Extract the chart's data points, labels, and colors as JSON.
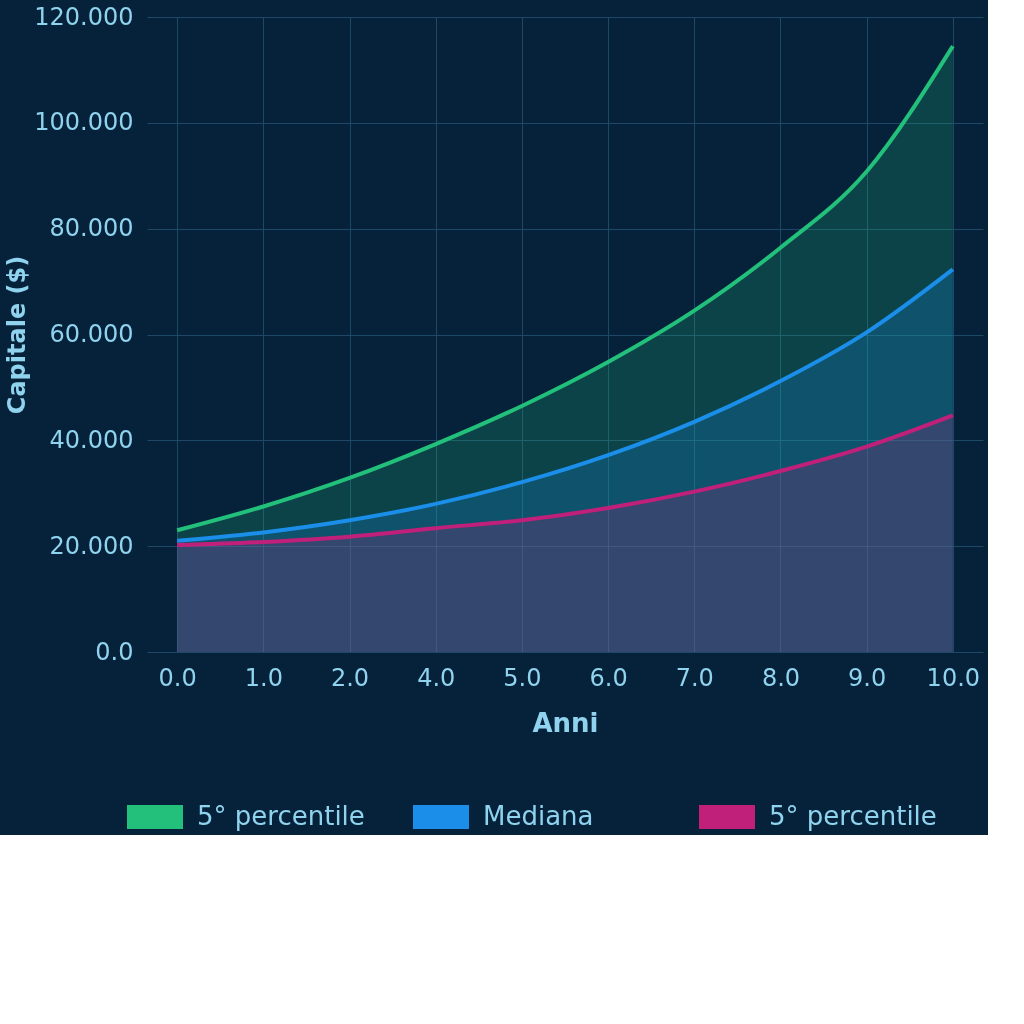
{
  "chart_data": {
    "type": "area",
    "xlabel": "Anni",
    "ylabel": "Capitale ($)",
    "categories": [
      "0.0",
      "1.0",
      "2.0",
      "4.0",
      "5.0",
      "6.0",
      "7.0",
      "8.0",
      "9.0",
      "10.0"
    ],
    "series": [
      {
        "name": "5° percentile",
        "color": "#22c07a",
        "values": [
          23.0,
          27.5,
          32.9,
          39.3,
          46.5,
          54.8,
          64.5,
          76.4,
          90.8,
          114.5
        ]
      },
      {
        "name": "Mediana",
        "color": "#1a8ee8",
        "values": [
          21.0,
          22.6,
          24.9,
          28.0,
          32.1,
          37.2,
          43.5,
          51.2,
          60.4,
          72.3
        ]
      },
      {
        "name": "5° percentile",
        "color": "#c0207a",
        "values": [
          20.2,
          20.8,
          21.8,
          23.4,
          24.9,
          27.2,
          30.3,
          34.2,
          38.8,
          44.7
        ]
      }
    ],
    "ylim": [
      0,
      120
    ],
    "yticks": [
      {
        "value": 0,
        "label": "0.0"
      },
      {
        "value": 20,
        "label": "20.000"
      },
      {
        "value": 40,
        "label": "40.000"
      },
      {
        "value": 60,
        "label": "60.000"
      },
      {
        "value": 80,
        "label": "80.000"
      },
      {
        "value": 100,
        "label": "100.000"
      },
      {
        "value": 120,
        "label": "120.000"
      }
    ],
    "grid": true,
    "legend": "bottom",
    "line_style": "solid",
    "marker": "none"
  }
}
